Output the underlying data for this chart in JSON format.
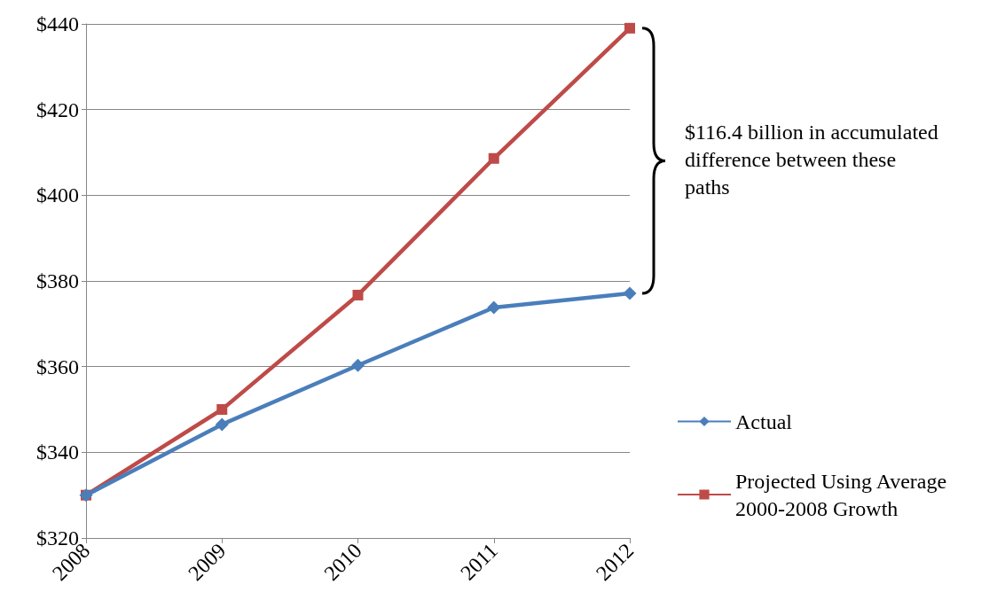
{
  "chart_data": {
    "type": "line",
    "categories": [
      "2008",
      "2009",
      "2010",
      "2011",
      "2012"
    ],
    "series": [
      {
        "name": "Actual",
        "color": "#4a7ebb",
        "marker": "diamond",
        "values": [
          330,
          346.5,
          360.3,
          373.8,
          377.1
        ]
      },
      {
        "name": "Projected Using Average 2000-2008 Growth",
        "color": "#be4b48",
        "marker": "square",
        "values": [
          330,
          350,
          376.7,
          408.6,
          439
        ]
      }
    ],
    "ylim": [
      320,
      440
    ],
    "yticks": [
      {
        "value": 320,
        "label": "$320"
      },
      {
        "value": 340,
        "label": "$340"
      },
      {
        "value": 360,
        "label": "$360"
      },
      {
        "value": 380,
        "label": "$380"
      },
      {
        "value": 400,
        "label": "$400"
      },
      {
        "value": 420,
        "label": "$420"
      },
      {
        "value": 440,
        "label": "$440"
      }
    ],
    "grid": "y",
    "legend": "right",
    "line_style": "solid",
    "annotations": [
      "$116.4 billion in accumulated difference between these paths"
    ]
  }
}
